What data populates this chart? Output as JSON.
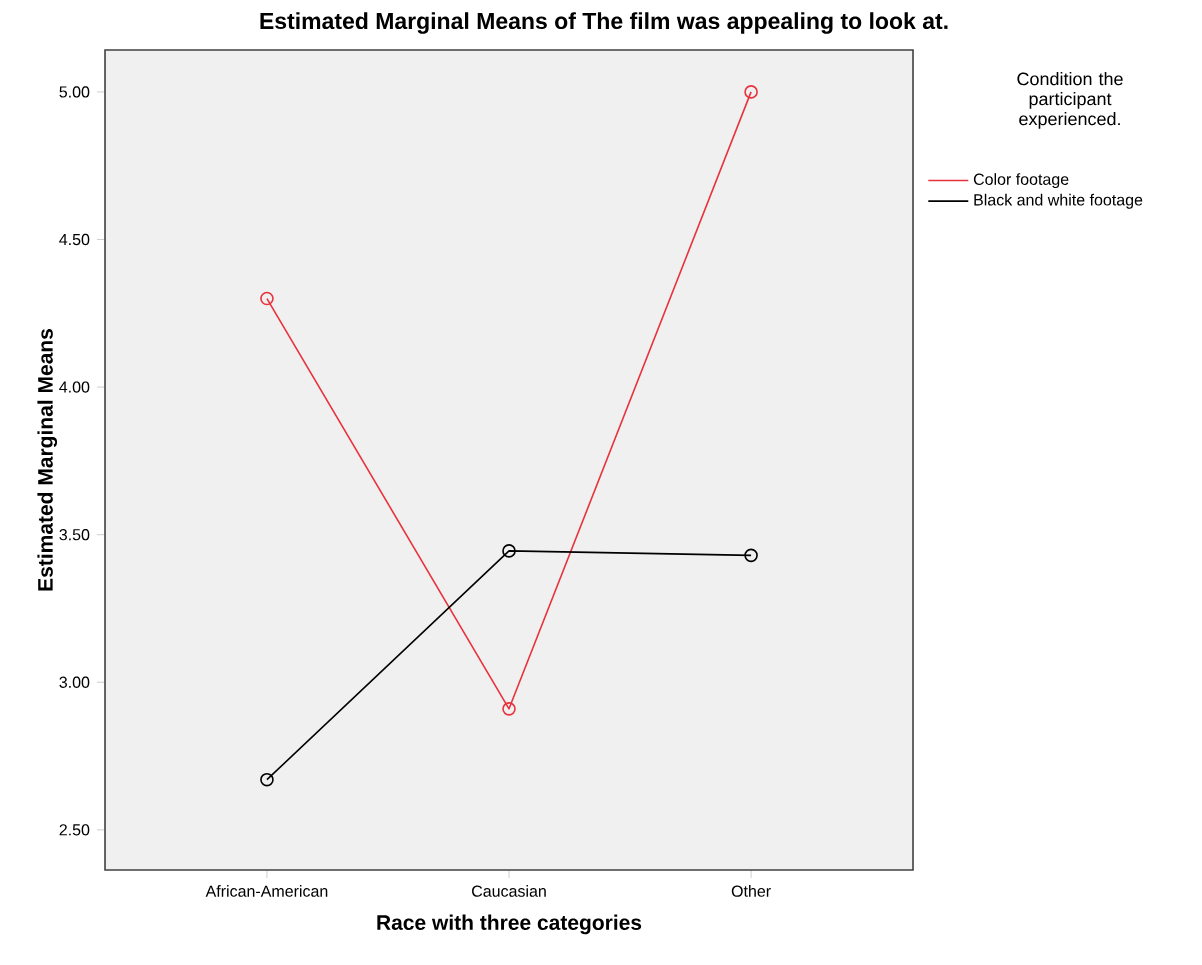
{
  "chart_data": {
    "type": "line",
    "title": "Estimated Marginal Means of The film was appealing to look at.",
    "xlabel": "Race with three categories",
    "ylabel": "Estimated Marginal Means",
    "legend_title": "Condition the participant experienced.",
    "categories": [
      "African-American",
      "Caucasian",
      "Other"
    ],
    "series": [
      {
        "name": "Color footage",
        "color": "#e8323c",
        "values": [
          4.3,
          2.91,
          5.0
        ]
      },
      {
        "name": "Black and white footage",
        "color": "#000000",
        "values": [
          2.67,
          3.445,
          3.43
        ]
      }
    ],
    "ylim": [
      2.364,
      5.142
    ],
    "yticks": [
      {
        "value": 2.5,
        "label": "2.50"
      },
      {
        "value": 3.0,
        "label": "3.00"
      },
      {
        "value": 3.5,
        "label": "3.50"
      },
      {
        "value": 4.0,
        "label": "4.00"
      },
      {
        "value": 4.5,
        "label": "4.50"
      },
      {
        "value": 5.0,
        "label": "5.00"
      }
    ],
    "marker": "circle",
    "legend": "top right",
    "grid": false
  }
}
